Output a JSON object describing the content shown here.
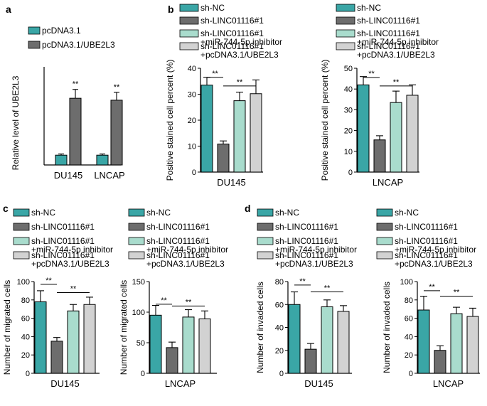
{
  "panels": [
    {
      "label": "a"
    },
    {
      "label": "b"
    },
    {
      "label": "c"
    },
    {
      "label": "d"
    }
  ],
  "colors": {
    "sh_nc": "#3aa6a6",
    "sh_linc": "#6d6d6d",
    "inhibitor": "#a9dccd",
    "ube2l3": "#d2d2d2",
    "pcdna": "#3aa6a6",
    "pcdna_ube2l3": "#6d6d6d"
  },
  "chart_data": [
    {
      "id": "a",
      "type": "bar",
      "ylabel": "Relative level of UBE2L3",
      "ylim": [
        0,
        10
      ],
      "categories": [
        "DU145",
        "LNCAP"
      ],
      "series": [
        {
          "name": "pcDNA3.1",
          "values": [
            1.0,
            1.0
          ],
          "errors": [
            0.12,
            0.12
          ]
        },
        {
          "name": "pcDNA3.1/UBE2L3",
          "values": [
            6.8,
            6.6
          ],
          "errors": [
            0.9,
            0.8
          ]
        }
      ],
      "significance": [
        "**",
        "**"
      ]
    },
    {
      "id": "b-du145",
      "type": "bar",
      "ylabel": "Positive stained cell percent (%)",
      "ylim": [
        0,
        40
      ],
      "yticks": [
        0,
        10,
        20,
        30,
        40
      ],
      "xlabel": "DU145",
      "categories": [
        "sh-NC",
        "sh-LINC01116#1",
        "sh-LINC01116#1 +miR-744-5p inhibitor",
        "sh-LINC01116#1 +pcDNA3.1/UBE2L3"
      ],
      "values": [
        33.5,
        10.8,
        27.5,
        30.2
      ],
      "errors": [
        3.0,
        1.2,
        3.3,
        5.3
      ],
      "significance": [
        "**",
        "**"
      ]
    },
    {
      "id": "b-lncap",
      "type": "bar",
      "ylabel": "Positive stained cell percent (%)",
      "ylim": [
        0,
        50
      ],
      "yticks": [
        0,
        10,
        20,
        30,
        40,
        50
      ],
      "xlabel": "LNCAP",
      "categories": [
        "sh-NC",
        "sh-LINC01116#1",
        "sh-LINC01116#1 +miR-744-5p inhibitor",
        "sh-LINC01116#1 +pcDNA3.1/UBE2L3"
      ],
      "values": [
        42.0,
        15.5,
        33.5,
        37.0
      ],
      "errors": [
        4.0,
        2.0,
        5.5,
        5.0
      ],
      "significance": [
        "**",
        "**"
      ]
    },
    {
      "id": "c-du145",
      "type": "bar",
      "ylabel": "Number of migrated cells",
      "ylim": [
        0,
        100
      ],
      "yticks": [
        0,
        20,
        40,
        60,
        80,
        100
      ],
      "xlabel": "DU145",
      "categories": [
        "sh-NC",
        "sh-LINC01116#1",
        "sh-LINC01116#1 +miR-744-5p inhibitor",
        "sh-LINC01116#1 +pcDNA3.1/UBE2L3"
      ],
      "values": [
        78,
        35,
        68,
        75
      ],
      "errors": [
        12,
        4,
        7,
        8
      ],
      "significance": [
        "**",
        "**"
      ]
    },
    {
      "id": "c-lncap",
      "type": "bar",
      "ylabel": "Number of migrated cells",
      "ylim": [
        0,
        150
      ],
      "yticks": [
        0,
        50,
        100,
        150
      ],
      "xlabel": "LNCAP",
      "categories": [
        "sh-NC",
        "sh-LINC01116#1",
        "sh-LINC01116#1 +miR-744-5p inhibitor",
        "sh-LINC01116#1 +pcDNA3.1/UBE2L3"
      ],
      "values": [
        95,
        42,
        92,
        89
      ],
      "errors": [
        16,
        9,
        12,
        13
      ],
      "significance": [
        "**",
        "**"
      ]
    },
    {
      "id": "d-du145",
      "type": "bar",
      "ylabel": "Number of invaded cells",
      "ylim": [
        0,
        80
      ],
      "yticks": [
        0,
        20,
        40,
        60,
        80
      ],
      "xlabel": "DU145",
      "categories": [
        "sh-NC",
        "sh-LINC01116#1",
        "sh-LINC01116#1 +miR-744-5p inhibitor",
        "sh-LINC01116#1 +pcDNA3.1/UBE2L3"
      ],
      "values": [
        60,
        21,
        58,
        54
      ],
      "errors": [
        11,
        5,
        6,
        5
      ],
      "significance": [
        "**",
        "**"
      ]
    },
    {
      "id": "d-lncap",
      "type": "bar",
      "ylabel": "Number of invaded cells",
      "ylim": [
        0,
        100
      ],
      "yticks": [
        0,
        20,
        40,
        60,
        80,
        100
      ],
      "xlabel": "LNCAP",
      "categories": [
        "sh-NC",
        "sh-LINC01116#1",
        "sh-LINC01116#1 +miR-744-5p inhibitor",
        "sh-LINC01116#1 +pcDNA3.1/UBE2L3"
      ],
      "values": [
        69,
        25,
        65,
        62
      ],
      "errors": [
        15,
        5,
        7,
        9
      ],
      "significance": [
        "**",
        "**"
      ]
    }
  ],
  "legends": {
    "a": [
      "pcDNA3.1",
      "pcDNA3.1/UBE2L3"
    ],
    "groups": [
      [
        "sh-NC"
      ],
      [
        "sh-LINC01116#1"
      ],
      [
        "sh-LINC01116#1",
        "+miR-744-5p inhibitor"
      ],
      [
        "sh-LINC01116#1",
        "+pcDNA3.1/UBE2L3"
      ]
    ]
  }
}
